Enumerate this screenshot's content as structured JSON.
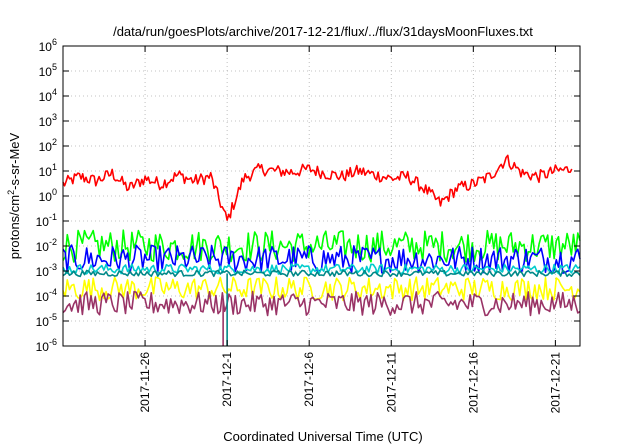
{
  "chart_data": {
    "type": "line",
    "title": "/data/run/goesPlots/archive/2017-12-21/flux/../flux/31daysMoonFluxes.txt",
    "xlabel": "Coordinated Universal Time (UTC)",
    "ylabel_parts": {
      "base": "protons/cm",
      "sup": "2",
      "rest": "-s-sr-MeV"
    },
    "yscale": "log",
    "ylim": [
      1e-06,
      1000000.0
    ],
    "y_ticks": [
      {
        "base": "10",
        "exp": "-6"
      },
      {
        "base": "10",
        "exp": "-5"
      },
      {
        "base": "10",
        "exp": "-4"
      },
      {
        "base": "10",
        "exp": "-3"
      },
      {
        "base": "10",
        "exp": "-2"
      },
      {
        "base": "10",
        "exp": "-1"
      },
      {
        "base": "10",
        "exp": "0"
      },
      {
        "base": "10",
        "exp": "1"
      },
      {
        "base": "10",
        "exp": "2"
      },
      {
        "base": "10",
        "exp": "3"
      },
      {
        "base": "10",
        "exp": "4"
      },
      {
        "base": "10",
        "exp": "5"
      },
      {
        "base": "10",
        "exp": "6"
      }
    ],
    "xlim": [
      "2017-11-21",
      "2017-12-22T12:00"
    ],
    "x_ticks": [
      "2017-11-26",
      "2017-12-1",
      "2017-12-6",
      "2017-12-11",
      "2017-12-16",
      "2017-12-21"
    ],
    "grid": true,
    "series": [
      {
        "color": "#ff0000",
        "baseline": 5,
        "spread": 1.0,
        "points": [
          [
            "2017-11-21",
            3
          ],
          [
            "2017-11-22",
            6
          ],
          [
            "2017-11-23",
            4
          ],
          [
            "2017-11-24",
            8
          ],
          [
            "2017-11-25",
            2
          ],
          [
            "2017-11-26",
            5
          ],
          [
            "2017-11-27",
            3
          ],
          [
            "2017-11-28",
            7
          ],
          [
            "2017-11-29",
            4
          ],
          [
            "2017-11-30",
            6
          ],
          [
            "2017-12-01",
            0.1
          ],
          [
            "2017-12-02",
            5
          ],
          [
            "2017-12-03",
            12
          ],
          [
            "2017-12-04",
            10
          ],
          [
            "2017-12-05",
            9
          ],
          [
            "2017-12-06",
            12
          ],
          [
            "2017-12-07",
            8
          ],
          [
            "2017-12-08",
            6
          ],
          [
            "2017-12-09",
            10
          ],
          [
            "2017-12-10",
            7
          ],
          [
            "2017-12-11",
            5
          ],
          [
            "2017-12-12",
            6
          ],
          [
            "2017-12-13",
            2
          ],
          [
            "2017-12-14",
            0.5
          ],
          [
            "2017-12-15",
            2
          ],
          [
            "2017-12-16",
            3
          ],
          [
            "2017-12-17",
            6
          ],
          [
            "2017-12-18",
            30
          ],
          [
            "2017-12-19",
            8
          ],
          [
            "2017-12-20",
            6
          ],
          [
            "2017-12-21",
            10
          ],
          [
            "2017-12-22",
            12
          ]
        ]
      },
      {
        "color": "#00ff00",
        "baseline": 0.01,
        "spread": 0.8,
        "points": []
      },
      {
        "color": "#0000ff",
        "baseline": 0.003,
        "spread": 0.7,
        "points": []
      },
      {
        "color": "#00cccc",
        "baseline": 0.0012,
        "spread": 0.25,
        "points": []
      },
      {
        "color": "#ffff00",
        "baseline": 0.0002,
        "spread": 0.6,
        "points": []
      },
      {
        "color": "#993366",
        "baseline": 5e-05,
        "spread": 0.6,
        "points": []
      },
      {
        "color": "#008888",
        "baseline": 0.0008,
        "spread": 0.15,
        "points": [],
        "dropout": "2017-12-01"
      }
    ],
    "legend": "none"
  }
}
